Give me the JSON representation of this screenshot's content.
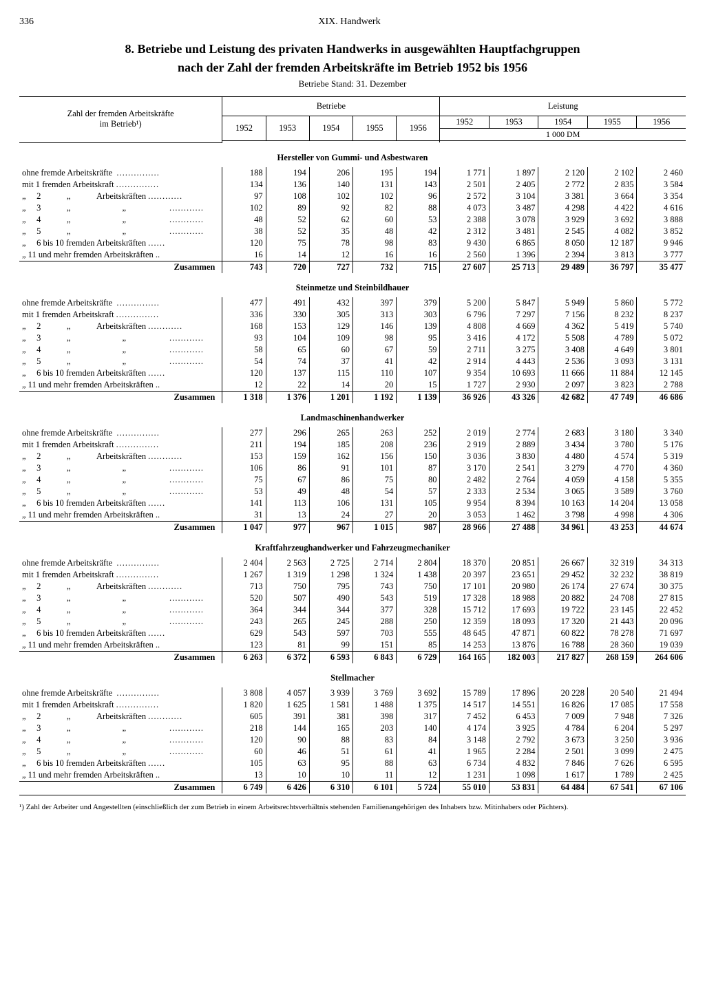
{
  "page_number": "336",
  "chapter": "XIX. Handwerk",
  "title_line1": "8. Betriebe und Leistung des privaten Handwerks in ausgewählten Hauptfachgruppen",
  "title_line2": "nach der Zahl der fremden Arbeitskräfte im Betrieb 1952 bis 1956",
  "sub_note": "Betriebe Stand: 31. Dezember",
  "stub_head1": "Zahl der fremden Arbeitskräfte",
  "stub_head2": "im Betrieb¹)",
  "group_betriebe": "Betriebe",
  "group_leistung": "Leistung",
  "years": [
    "1952",
    "1953",
    "1954",
    "1955",
    "1956"
  ],
  "unit": "1 000 DM",
  "row_labels": {
    "r0": "ohne fremde Arbeitskräfte  ……………",
    "r1": "mit 1 fremden Arbeitskraft ……………",
    "r2a": "„  2   „   Arbeitskräften …………",
    "r3a": "„  3   „      „     …………",
    "r4a": "„  4   „      „     …………",
    "r5a": "„  5   „      „     …………",
    "r6": "„  6 bis 10 fremden Arbeitskräften ……",
    "r7": "„ 11 und mehr fremden Arbeitskräften ..",
    "sum": "Zusammen"
  },
  "sections": [
    {
      "title": "Hersteller von Gummi- und Asbestwaren",
      "rows": [
        [
          "188",
          "194",
          "206",
          "195",
          "194",
          "1 771",
          "1 897",
          "2 120",
          "2 102",
          "2 460"
        ],
        [
          "134",
          "136",
          "140",
          "131",
          "143",
          "2 501",
          "2 405",
          "2 772",
          "2 835",
          "3 584"
        ],
        [
          "97",
          "108",
          "102",
          "102",
          "96",
          "2 572",
          "3 104",
          "3 381",
          "3 664",
          "3 354"
        ],
        [
          "102",
          "89",
          "92",
          "82",
          "88",
          "4 073",
          "3 487",
          "4 298",
          "4 422",
          "4 616"
        ],
        [
          "48",
          "52",
          "62",
          "60",
          "53",
          "2 388",
          "3 078",
          "3 929",
          "3 692",
          "3 888"
        ],
        [
          "38",
          "52",
          "35",
          "48",
          "42",
          "2 312",
          "3 481",
          "2 545",
          "4 082",
          "3 852"
        ],
        [
          "120",
          "75",
          "78",
          "98",
          "83",
          "9 430",
          "6 865",
          "8 050",
          "12 187",
          "9 946"
        ],
        [
          "16",
          "14",
          "12",
          "16",
          "16",
          "2 560",
          "1 396",
          "2 394",
          "3 813",
          "3 777"
        ]
      ],
      "sum": [
        "743",
        "720",
        "727",
        "732",
        "715",
        "27 607",
        "25 713",
        "29 489",
        "36 797",
        "35 477"
      ]
    },
    {
      "title": "Steinmetze und Steinbildhauer",
      "rows": [
        [
          "477",
          "491",
          "432",
          "397",
          "379",
          "5 200",
          "5 847",
          "5 949",
          "5 860",
          "5 772"
        ],
        [
          "336",
          "330",
          "305",
          "313",
          "303",
          "6 796",
          "7 297",
          "7 156",
          "8 232",
          "8 237"
        ],
        [
          "168",
          "153",
          "129",
          "146",
          "139",
          "4 808",
          "4 669",
          "4 362",
          "5 419",
          "5 740"
        ],
        [
          "93",
          "104",
          "109",
          "98",
          "95",
          "3 416",
          "4 172",
          "5 508",
          "4 789",
          "5 072"
        ],
        [
          "58",
          "65",
          "60",
          "67",
          "59",
          "2 711",
          "3 275",
          "3 408",
          "4 649",
          "3 801"
        ],
        [
          "54",
          "74",
          "37",
          "41",
          "42",
          "2 914",
          "4 443",
          "2 536",
          "3 093",
          "3 131"
        ],
        [
          "120",
          "137",
          "115",
          "110",
          "107",
          "9 354",
          "10 693",
          "11 666",
          "11 884",
          "12 145"
        ],
        [
          "12",
          "22",
          "14",
          "20",
          "15",
          "1 727",
          "2 930",
          "2 097",
          "3 823",
          "2 788"
        ]
      ],
      "sum": [
        "1 318",
        "1 376",
        "1 201",
        "1 192",
        "1 139",
        "36 926",
        "43 326",
        "42 682",
        "47 749",
        "46 686"
      ]
    },
    {
      "title": "Landmaschinenhandwerker",
      "rows": [
        [
          "277",
          "296",
          "265",
          "263",
          "252",
          "2 019",
          "2 774",
          "2 683",
          "3 180",
          "3 340"
        ],
        [
          "211",
          "194",
          "185",
          "208",
          "236",
          "2 919",
          "2 889",
          "3 434",
          "3 780",
          "5 176"
        ],
        [
          "153",
          "159",
          "162",
          "156",
          "150",
          "3 036",
          "3 830",
          "4 480",
          "4 574",
          "5 319"
        ],
        [
          "106",
          "86",
          "91",
          "101",
          "87",
          "3 170",
          "2 541",
          "3 279",
          "4 770",
          "4 360"
        ],
        [
          "75",
          "67",
          "86",
          "75",
          "80",
          "2 482",
          "2 764",
          "4 059",
          "4 158",
          "5 355"
        ],
        [
          "53",
          "49",
          "48",
          "54",
          "57",
          "2 333",
          "2 534",
          "3 065",
          "3 589",
          "3 760"
        ],
        [
          "141",
          "113",
          "106",
          "131",
          "105",
          "9 954",
          "8 394",
          "10 163",
          "14 204",
          "13 058"
        ],
        [
          "31",
          "13",
          "24",
          "27",
          "20",
          "3 053",
          "1 462",
          "3 798",
          "4 998",
          "4 306"
        ]
      ],
      "sum": [
        "1 047",
        "977",
        "967",
        "1 015",
        "987",
        "28 966",
        "27 488",
        "34 961",
        "43 253",
        "44 674"
      ]
    },
    {
      "title": "Kraftfahrzeughandwerker und Fahrzeugmechaniker",
      "rows": [
        [
          "2 404",
          "2 563",
          "2 725",
          "2 714",
          "2 804",
          "18 370",
          "20 851",
          "26 667",
          "32 319",
          "34 313"
        ],
        [
          "1 267",
          "1 319",
          "1 298",
          "1 324",
          "1 438",
          "20 397",
          "23 651",
          "29 452",
          "32 232",
          "38 819"
        ],
        [
          "713",
          "750",
          "795",
          "743",
          "750",
          "17 101",
          "20 980",
          "26 174",
          "27 674",
          "30 375"
        ],
        [
          "520",
          "507",
          "490",
          "543",
          "519",
          "17 328",
          "18 988",
          "20 882",
          "24 708",
          "27 815"
        ],
        [
          "364",
          "344",
          "344",
          "377",
          "328",
          "15 712",
          "17 693",
          "19 722",
          "23 145",
          "22 452"
        ],
        [
          "243",
          "265",
          "245",
          "288",
          "250",
          "12 359",
          "18 093",
          "17 320",
          "21 443",
          "20 096"
        ],
        [
          "629",
          "543",
          "597",
          "703",
          "555",
          "48 645",
          "47 871",
          "60 822",
          "78 278",
          "71 697"
        ],
        [
          "123",
          "81",
          "99",
          "151",
          "85",
          "14 253",
          "13 876",
          "16 788",
          "28 360",
          "19 039"
        ]
      ],
      "sum": [
        "6 263",
        "6 372",
        "6 593",
        "6 843",
        "6 729",
        "164 165",
        "182 003",
        "217 827",
        "268 159",
        "264 606"
      ]
    },
    {
      "title": "Stellmacher",
      "rows": [
        [
          "3 808",
          "4 057",
          "3 939",
          "3 769",
          "3 692",
          "15 789",
          "17 896",
          "20 228",
          "20 540",
          "21 494"
        ],
        [
          "1 820",
          "1 625",
          "1 581",
          "1 488",
          "1 375",
          "14 517",
          "14 551",
          "16 826",
          "17 085",
          "17 558"
        ],
        [
          "605",
          "391",
          "381",
          "398",
          "317",
          "7 452",
          "6 453",
          "7 009",
          "7 948",
          "7 326"
        ],
        [
          "218",
          "144",
          "165",
          "203",
          "140",
          "4 174",
          "3 925",
          "4 784",
          "6 204",
          "5 297"
        ],
        [
          "120",
          "90",
          "88",
          "83",
          "84",
          "3 148",
          "2 792",
          "3 673",
          "3 250",
          "3 936"
        ],
        [
          "60",
          "46",
          "51",
          "61",
          "41",
          "1 965",
          "2 284",
          "2 501",
          "3 099",
          "2 475"
        ],
        [
          "105",
          "63",
          "95",
          "88",
          "63",
          "6 734",
          "4 832",
          "7 846",
          "7 626",
          "6 595"
        ],
        [
          "13",
          "10",
          "10",
          "11",
          "12",
          "1 231",
          "1 098",
          "1 617",
          "1 789",
          "2 425"
        ]
      ],
      "sum": [
        "6 749",
        "6 426",
        "6 310",
        "6 101",
        "5 724",
        "55 010",
        "53 831",
        "64 484",
        "67 541",
        "67 106"
      ]
    }
  ],
  "footnote": "¹) Zahl der Arbeiter und Angestellten (einschließlich der zum Betrieb in einem Arbeitsrechtsverhältnis stehenden Familienangehörigen des Inhabers bzw. Mitinhabers oder Pächters)."
}
